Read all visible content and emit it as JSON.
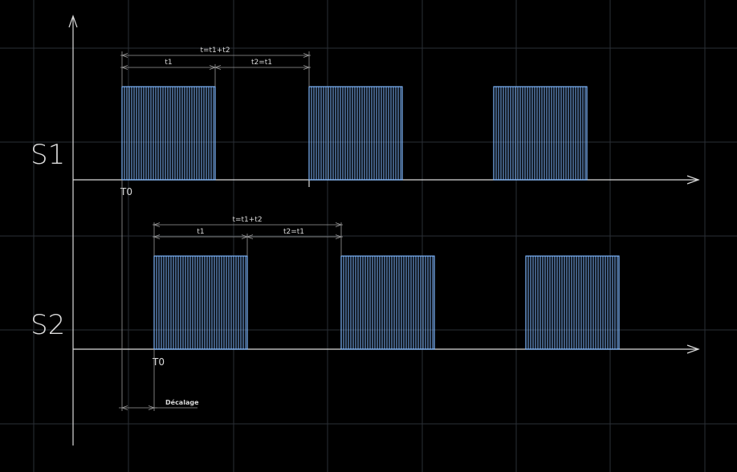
{
  "colors": {
    "pulse": "#7fb8ff",
    "axis": "#d9d9d9",
    "grid": "#2a2f36",
    "background": "#000000"
  },
  "signals": [
    {
      "label": "S1",
      "origin_label": "T0",
      "period_label": "t=t1+t2",
      "t1_label": "t1",
      "t2_label": "t2=t1"
    },
    {
      "label": "S2",
      "origin_label": "T0",
      "period_label": "t=t1+t2",
      "t1_label": "t1",
      "t2_label": "t2=t1"
    }
  ],
  "offset_label": "Décalage"
}
